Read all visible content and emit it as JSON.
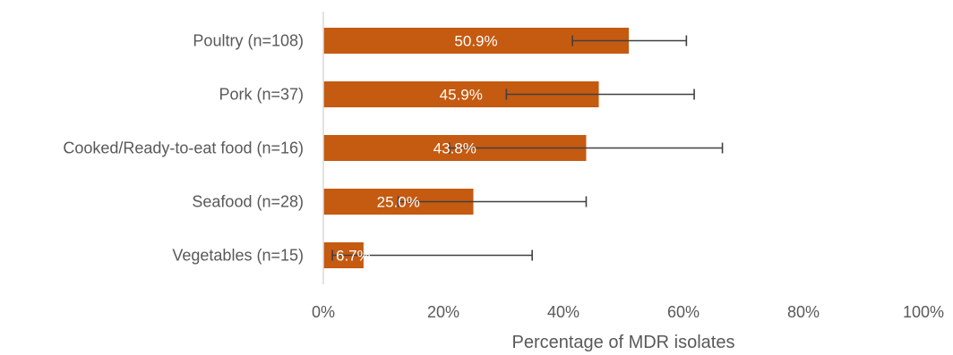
{
  "chart_data": {
    "type": "bar",
    "orientation": "horizontal",
    "categories": [
      "Poultry (n=108)",
      "Pork (n=37)",
      "Cooked/Ready-to-eat food (n=16)",
      "Seafood (n=28)",
      "Vegetables (n=15)"
    ],
    "values": [
      50.9,
      45.9,
      43.8,
      25.0,
      6.7
    ],
    "data_labels": [
      "50.9%",
      "45.9%",
      "43.8%",
      "25.0%",
      "6.7%"
    ],
    "error_bars": [
      {
        "low": 41.5,
        "high": 60.5
      },
      {
        "low": 30.5,
        "high": 61.8
      },
      {
        "low": 21.0,
        "high": 66.5
      },
      {
        "low": 12.5,
        "high": 43.8
      },
      {
        "low": 1.5,
        "high": 34.8
      }
    ],
    "xlabel": "Percentage of MDR isolates",
    "ylabel": "",
    "xlim": [
      0,
      100
    ],
    "x_ticks": [
      0,
      20,
      40,
      60,
      80,
      100
    ],
    "x_tick_labels": [
      "0%",
      "20%",
      "40%",
      "60%",
      "80%",
      "100%"
    ],
    "grid": false,
    "legend": "none",
    "colors": {
      "bar": "#c55a11",
      "error_bar": "#404040",
      "axis": "#d9d9d9",
      "text": "#595959",
      "data_label": "#ffffff"
    }
  }
}
